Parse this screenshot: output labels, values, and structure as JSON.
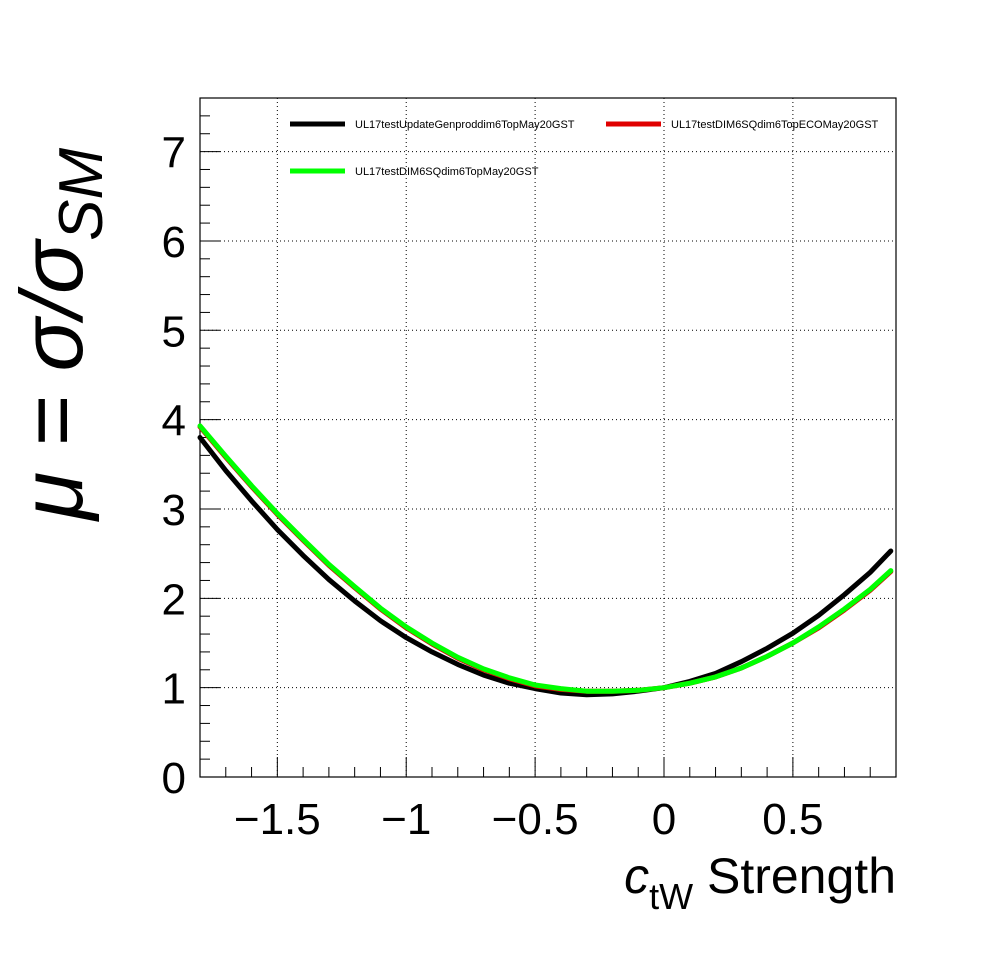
{
  "chart_data": {
    "type": "line",
    "title": "",
    "xlabel": {
      "main": "c",
      "sub": "tW",
      "rest": " Strength"
    },
    "ylabel": {
      "main": "μ = σ/σ",
      "sub": "SM"
    },
    "xlim": [
      -1.8,
      0.9
    ],
    "ylim": [
      0,
      7.6
    ],
    "grid": true,
    "legend_position": "top",
    "x_ticks": [
      {
        "value": -1.5,
        "label": "−1.5"
      },
      {
        "value": -1.0,
        "label": "−1"
      },
      {
        "value": -0.5,
        "label": "−0.5"
      },
      {
        "value": 0.0,
        "label": "0"
      },
      {
        "value": 0.5,
        "label": "0.5"
      }
    ],
    "y_ticks": [
      {
        "value": 0,
        "label": "0"
      },
      {
        "value": 1,
        "label": "1"
      },
      {
        "value": 2,
        "label": "2"
      },
      {
        "value": 3,
        "label": "3"
      },
      {
        "value": 4,
        "label": "4"
      },
      {
        "value": 5,
        "label": "5"
      },
      {
        "value": 6,
        "label": "6"
      },
      {
        "value": 7,
        "label": "7"
      }
    ],
    "x": [
      -1.8,
      -1.7,
      -1.6,
      -1.5,
      -1.4,
      -1.3,
      -1.2,
      -1.1,
      -1.0,
      -0.9,
      -0.8,
      -0.7,
      -0.6,
      -0.5,
      -0.4,
      -0.3,
      -0.2,
      -0.1,
      0.0,
      0.1,
      0.2,
      0.3,
      0.4,
      0.5,
      0.6,
      0.7,
      0.8,
      0.88
    ],
    "series": [
      {
        "name": "UL17testUpdateGenproddim6TopMay20GST",
        "color": "#000000",
        "values": [
          3.8,
          3.43,
          3.09,
          2.77,
          2.48,
          2.21,
          1.97,
          1.75,
          1.56,
          1.4,
          1.26,
          1.14,
          1.05,
          0.99,
          0.94,
          0.92,
          0.93,
          0.96,
          1.0,
          1.07,
          1.16,
          1.29,
          1.44,
          1.61,
          1.81,
          2.04,
          2.29,
          2.53
        ]
      },
      {
        "name": "UL17testDIM6SQdim6TopECOMay20GST",
        "color": "#e00000",
        "values": [
          3.92,
          3.58,
          3.25,
          2.94,
          2.65,
          2.37,
          2.12,
          1.88,
          1.67,
          1.49,
          1.33,
          1.2,
          1.1,
          1.02,
          0.98,
          0.96,
          0.96,
          0.97,
          1.0,
          1.05,
          1.12,
          1.22,
          1.35,
          1.5,
          1.67,
          1.87,
          2.09,
          2.3
        ]
      },
      {
        "name": "UL17testDIM6SQdim6TopMay20GST",
        "color": "#00ff00",
        "values": [
          3.93,
          3.59,
          3.26,
          2.95,
          2.66,
          2.38,
          2.13,
          1.89,
          1.68,
          1.5,
          1.34,
          1.21,
          1.11,
          1.03,
          0.99,
          0.96,
          0.96,
          0.97,
          1.0,
          1.05,
          1.12,
          1.22,
          1.35,
          1.5,
          1.68,
          1.88,
          2.1,
          2.31
        ]
      }
    ]
  }
}
